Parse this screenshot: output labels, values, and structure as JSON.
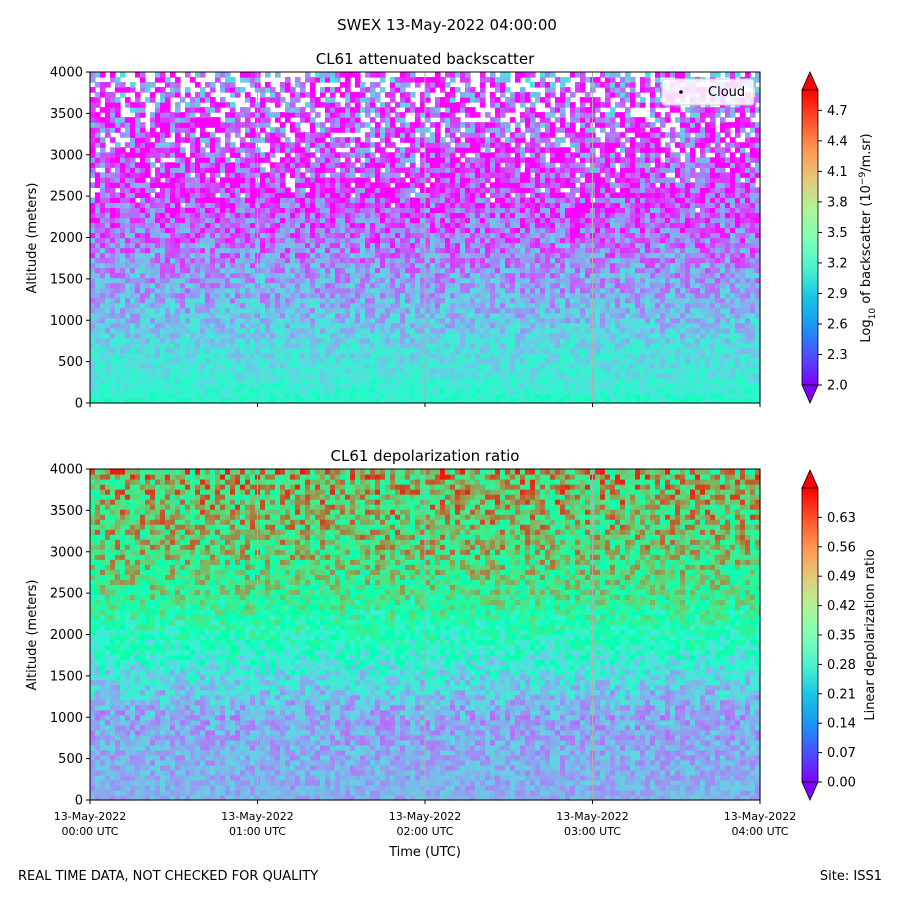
{
  "suptitle": "SWEX 13-May-2022 04:00:00",
  "footer_left": "REAL TIME DATA, NOT CHECKED FOR QUALITY",
  "footer_right": "Site: ISS1",
  "xaxis_label": "Time (UTC)",
  "xticks": [
    {
      "line1": "13-May-2022",
      "line2": "00:00 UTC"
    },
    {
      "line1": "13-May-2022",
      "line2": "01:00 UTC"
    },
    {
      "line1": "13-May-2022",
      "line2": "02:00 UTC"
    },
    {
      "line1": "13-May-2022",
      "line2": "03:00 UTC"
    },
    {
      "line1": "13-May-2022",
      "line2": "04:00 UTC"
    }
  ],
  "colormap": "rainbow",
  "chart_data": [
    {
      "type": "heatmap",
      "title": "CL61 attenuated backscatter",
      "ylabel": "Altitude (meters)",
      "ylim": [
        0,
        4000
      ],
      "yticks": [
        "0",
        "500",
        "1000",
        "1500",
        "2000",
        "2500",
        "3000",
        "3500",
        "4000"
      ],
      "xlim": [
        "13-May-2022 00:00 UTC",
        "13-May-2022 04:00 UTC"
      ],
      "legend": {
        "label": "Cloud",
        "placement": "top-right",
        "marker": "dot"
      },
      "colorbar": {
        "label_prefix": "Log",
        "label_sub": "10",
        "label_mid": " of backscatter (10",
        "label_sup": "−9",
        "label_suffix": "/m.sr)",
        "range": [
          2.0,
          4.9
        ],
        "extend": "both",
        "ticks": [
          "2.0",
          "2.3",
          "2.6",
          "2.9",
          "3.2",
          "3.5",
          "3.8",
          "4.1",
          "4.4",
          "4.7"
        ]
      },
      "profile": [
        {
          "altitude": 0,
          "value": 3.25
        },
        {
          "altitude": 300,
          "value": 3.05
        },
        {
          "altitude": 700,
          "value": 2.95
        },
        {
          "altitude": 1100,
          "value": 2.75
        },
        {
          "altitude": 1600,
          "value": 2.6
        },
        {
          "altitude": 2000,
          "value": 2.45
        },
        {
          "altitude": 2500,
          "value": 2.25
        },
        {
          "altitude": 3000,
          "value": 2.25
        },
        {
          "altitude": 4000,
          "value": 2.4
        }
      ]
    },
    {
      "type": "heatmap",
      "title": "CL61 depolarization ratio",
      "ylabel": "Altitude (meters)",
      "ylim": [
        0,
        4000
      ],
      "yticks": [
        "0",
        "500",
        "1000",
        "1500",
        "2000",
        "2500",
        "3000",
        "3500",
        "4000"
      ],
      "xlim": [
        "13-May-2022 00:00 UTC",
        "13-May-2022 04:00 UTC"
      ],
      "colorbar": {
        "label": "Linear depolarization ratio",
        "range": [
          0.0,
          0.7
        ],
        "extend": "both",
        "ticks": [
          "0.00",
          "0.07",
          "0.14",
          "0.21",
          "0.28",
          "0.35",
          "0.42",
          "0.49",
          "0.56",
          "0.63"
        ]
      },
      "profile": [
        {
          "altitude": 0,
          "value": 0.17
        },
        {
          "altitude": 500,
          "value": 0.17
        },
        {
          "altitude": 1000,
          "value": 0.16
        },
        {
          "altitude": 1500,
          "value": 0.24
        },
        {
          "altitude": 2000,
          "value": 0.34
        },
        {
          "altitude": 2500,
          "value": 0.43
        },
        {
          "altitude": 3000,
          "value": 0.48
        },
        {
          "altitude": 4000,
          "value": 0.52
        }
      ]
    }
  ]
}
